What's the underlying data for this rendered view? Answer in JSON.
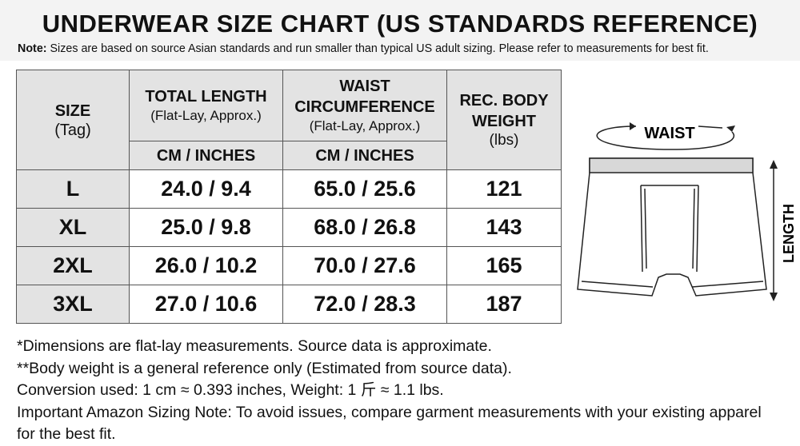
{
  "header": {
    "title": "UNDERWEAR SIZE CHART (US STANDARDS REFERENCE)",
    "note_label": "Note:",
    "note": "Sizes are based on source Asian standards and run smaller than typical US adult sizing. Please refer to measurements for best fit."
  },
  "table": {
    "columns": [
      {
        "title": "SIZE",
        "subtitle": "(Tag)"
      },
      {
        "title": "TOTAL LENGTH",
        "subtitle": "(Flat-Lay, Approx.)",
        "unit": "CM / INCHES"
      },
      {
        "title": "WAIST CIRCUMFERENCE",
        "subtitle": "(Flat-Lay, Approx.)",
        "unit": "CM / INCHES"
      },
      {
        "title": "REC. BODY WEIGHT",
        "subtitle": "(lbs)"
      }
    ],
    "rows": [
      [
        "L",
        "24.0 / 9.4",
        "65.0 / 25.6",
        121
      ],
      [
        "XL",
        "25.0 / 9.8",
        "68.0 / 26.8",
        143
      ],
      [
        "2XL",
        "26.0 / 10.2",
        "70.0 / 27.6",
        165
      ],
      [
        "3XL",
        "27.0 / 10.6",
        "72.0 / 28.3",
        187
      ]
    ]
  },
  "diagram": {
    "waist": "WAIST",
    "length": "LENGTH"
  },
  "footnotes": [
    "*Dimensions are flat-lay measurements. Source data is approximate.",
    "**Body weight is a general reference only (Estimated from source data).",
    "Conversion used: 1 cm ≈ 0.393 inches, Weight: 1 斤 ≈ 1.1 lbs.",
    "Important Amazon Sizing Note: To avoid issues, compare garment measurements with your existing apparel for the best fit."
  ]
}
